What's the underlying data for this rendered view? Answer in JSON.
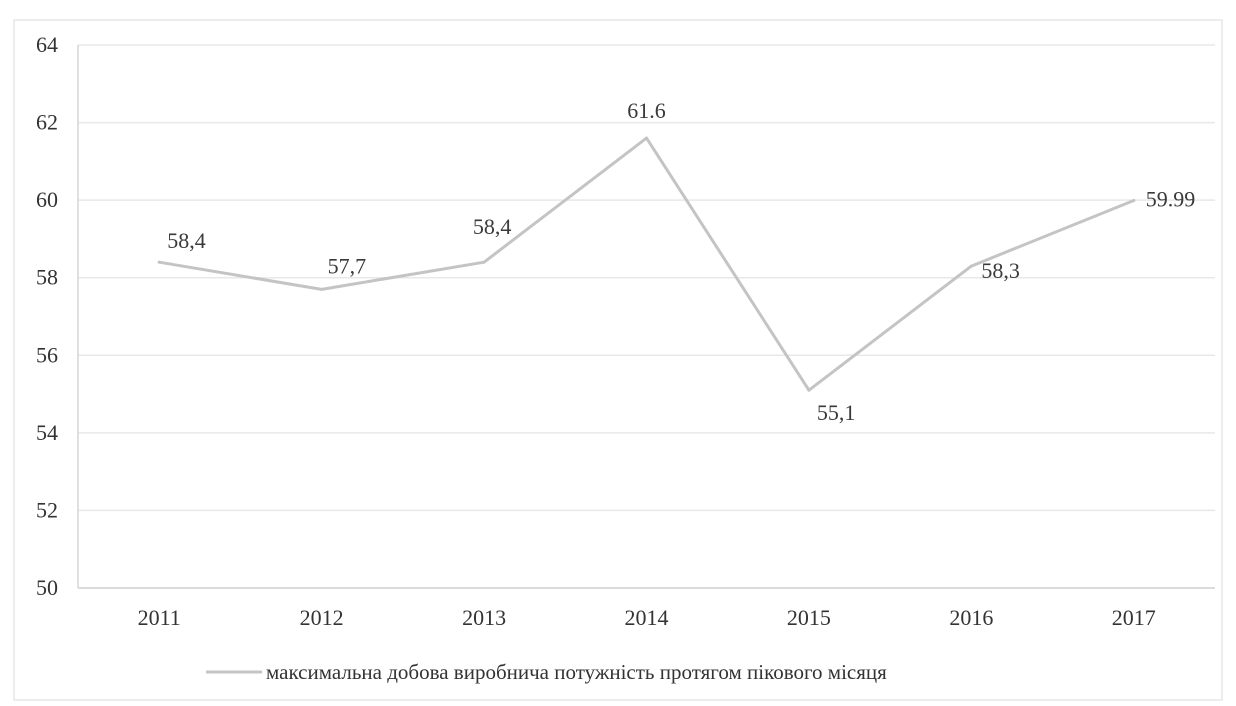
{
  "chart_data": {
    "type": "line",
    "title": "",
    "xlabel": "",
    "ylabel": "",
    "categories": [
      "2011",
      "2012",
      "2013",
      "2014",
      "2015",
      "2016",
      "2017"
    ],
    "series": [
      {
        "name": "максимальна добова виробнича потужність протягом пікового місяця",
        "values": [
          58.4,
          57.7,
          58.4,
          61.6,
          55.1,
          58.3,
          59.99
        ],
        "labels": [
          "58,4",
          "57,7",
          "58,4",
          "61.6",
          "55,1",
          "58,3",
          "59.99"
        ],
        "color": "#c4c4c4"
      }
    ],
    "ylim": [
      50,
      64
    ],
    "yticks": [
      "50",
      "52",
      "54",
      "56",
      "58",
      "60",
      "62",
      "64"
    ],
    "grid": true,
    "legend_position": "bottom"
  }
}
